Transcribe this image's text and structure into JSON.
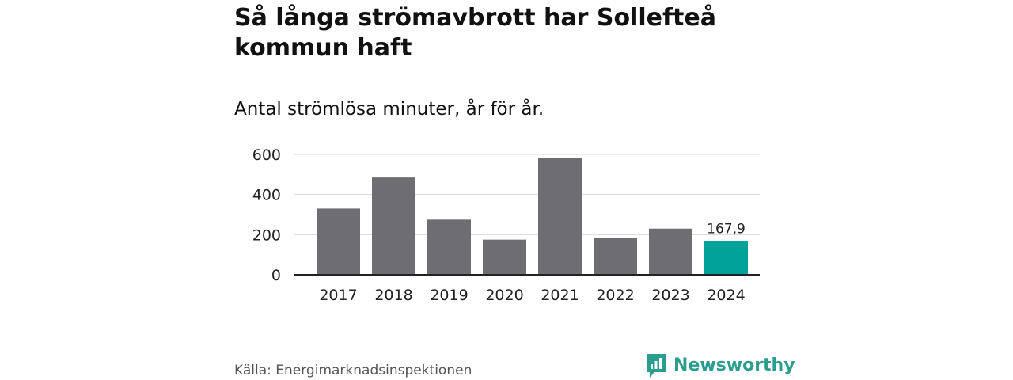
{
  "header": {
    "title": "Så långa strömavbrott har Sollefteå kommun haft",
    "subtitle": "Antal strömlösa minuter, år för år."
  },
  "footer": {
    "source": "Källa: Energimarknadsinspektionen",
    "brand": "Newsworthy"
  },
  "colors": {
    "bar": "#6d6d72",
    "highlight": "#00a29a",
    "grid": "#d9d9d9",
    "axis": "#222222",
    "brand": "#2a9d8f"
  },
  "chart_data": {
    "type": "bar",
    "title": "Så långa strömavbrott har Sollefteå kommun haft",
    "subtitle": "Antal strömlösa minuter, år för år.",
    "xlabel": "",
    "ylabel": "",
    "categories": [
      "2017",
      "2018",
      "2019",
      "2020",
      "2021",
      "2022",
      "2023",
      "2024"
    ],
    "values": [
      330,
      485,
      275,
      175,
      583,
      182,
      230,
      167.9
    ],
    "ylim": [
      0,
      600
    ],
    "yticks": [
      0,
      200,
      400,
      600
    ],
    "ytick_labels": [
      "0",
      "200",
      "400",
      "600"
    ],
    "highlight_index": 7,
    "data_labels": [
      {
        "index": 7,
        "text": "167,9"
      }
    ],
    "grid": true
  }
}
